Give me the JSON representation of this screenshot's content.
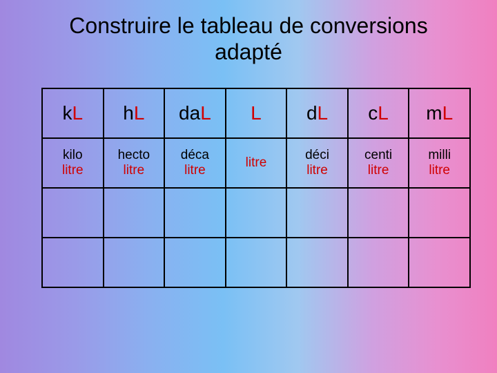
{
  "title_line1": "Construire le tableau de conversions",
  "title_line2": "adapté",
  "columns": [
    {
      "prefix": "k",
      "unit": "L",
      "full_prefix": "kilo",
      "full_unit": "litre"
    },
    {
      "prefix": "h",
      "unit": "L",
      "full_prefix": "hecto",
      "full_unit": "litre"
    },
    {
      "prefix": "da",
      "unit": "L",
      "full_prefix": "déca",
      "full_unit": "litre"
    },
    {
      "prefix": "",
      "unit": "L",
      "full_prefix": "",
      "full_unit": "litre"
    },
    {
      "prefix": "d",
      "unit": "L",
      "full_prefix": "déci",
      "full_unit": "litre"
    },
    {
      "prefix": "c",
      "unit": "L",
      "full_prefix": "centi",
      "full_unit": "litre"
    },
    {
      "prefix": "m",
      "unit": "L",
      "full_prefix": "milli",
      "full_unit": "litre"
    }
  ],
  "colors": {
    "unit_color": "#d00000",
    "text_color": "#000000",
    "border_color": "#000000"
  }
}
